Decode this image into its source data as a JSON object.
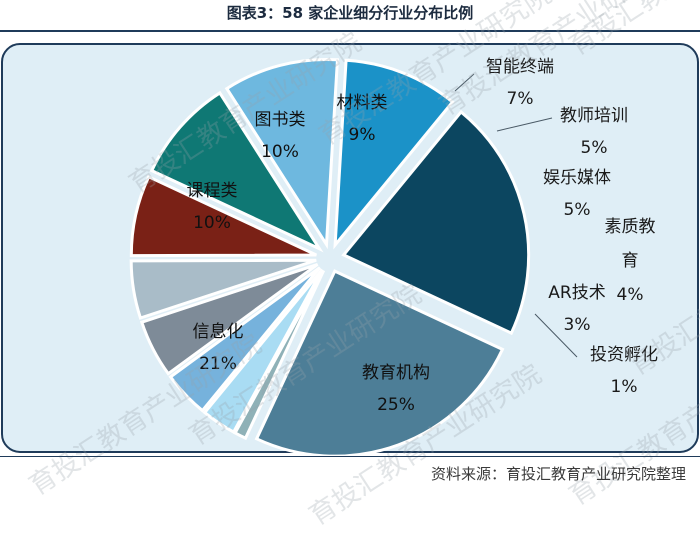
{
  "title": "图表3：58 家企业细分行业分布比例",
  "source_note": "资料来源：育投汇教育产业研究院整理",
  "watermark_text": "育投汇教育产业研究院",
  "colors": {
    "background_panel": "#dfeef6",
    "panel_border": "#1f3b5a",
    "label_dark": "#111111",
    "label_light": "#1a1a1a"
  },
  "chart_data": {
    "type": "pie",
    "title": "图表3：58 家企业细分行业分布比例",
    "slices": [
      {
        "name": "教育机构",
        "pct_label": "25%",
        "value": 25,
        "color": "#4d7e97"
      },
      {
        "name": "投资孵化",
        "pct_label": "1%",
        "value": 1,
        "color": "#8fb1b7"
      },
      {
        "name": "AR技术",
        "pct_label": "3%",
        "value": 3,
        "color": "#a9dcf3"
      },
      {
        "name": "素质教育",
        "pct_label": "4%",
        "value": 4,
        "color": "#76b2dc"
      },
      {
        "name": "娱乐媒体",
        "pct_label": "5%",
        "value": 5,
        "color": "#7e8b98"
      },
      {
        "name": "教师培训",
        "pct_label": "5%",
        "value": 5,
        "color": "#a9bcc8"
      },
      {
        "name": "智能终端",
        "pct_label": "7%",
        "value": 7,
        "color": "#7a2116"
      },
      {
        "name": "材料类",
        "pct_label": "9%",
        "value": 9,
        "color": "#0f7874"
      },
      {
        "name": "图书类",
        "pct_label": "10%",
        "value": 10,
        "color": "#6eb8df"
      },
      {
        "name": "课程类",
        "pct_label": "10%",
        "value": 10,
        "color": "#1b92c8"
      },
      {
        "name": "信息化",
        "pct_label": "21%",
        "value": 21,
        "color": "#0c4660"
      }
    ]
  }
}
